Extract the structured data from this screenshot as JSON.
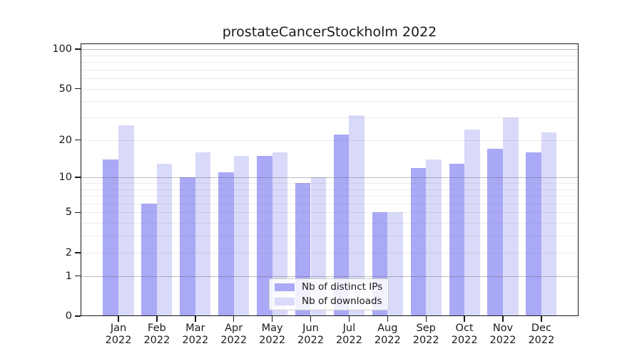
{
  "title": "prostateCancerStockholm 2022",
  "colors": {
    "distinct_ips": "#a9a9f7",
    "downloads": "#d9d9fa",
    "grid_major": "rgba(96,96,96,0.42)",
    "grid_minor": "rgba(128,128,128,0.16)",
    "axis": "#1a1a1a",
    "legend_border": "#cccccc",
    "background": "#ffffff"
  },
  "legend": {
    "items": [
      {
        "label": "Nb of distinct IPs",
        "series_key": "distinct-ips"
      },
      {
        "label": "Nb of downloads",
        "series_key": "downloads"
      }
    ]
  },
  "chart_data": {
    "type": "bar",
    "title": "prostateCancerStockholm 2022",
    "categories": [
      "Jan 2022",
      "Feb 2022",
      "Mar 2022",
      "Apr 2022",
      "May 2022",
      "Jun 2022",
      "Jul 2022",
      "Aug 2022",
      "Sep 2022",
      "Oct 2022",
      "Nov 2022",
      "Dec 2022"
    ],
    "series": [
      {
        "key": "distinct-ips",
        "name": "Nb of distinct IPs",
        "color": "#a9a9f7",
        "values": [
          14,
          6,
          10,
          11,
          15,
          9,
          22,
          5,
          12,
          13,
          17,
          16
        ]
      },
      {
        "key": "downloads",
        "name": "Nb of downloads",
        "color": "#d9d9fa",
        "values": [
          26,
          13,
          16,
          15,
          16,
          10,
          31,
          5,
          14,
          24,
          30,
          23
        ]
      }
    ],
    "xlabel": "",
    "ylabel": "",
    "yscale": "log1p",
    "ylim": [
      0,
      110
    ],
    "yticks": [
      0,
      1,
      2,
      5,
      10,
      20,
      50,
      100
    ],
    "grid": "both",
    "grid_major_values": [
      1,
      10,
      100
    ],
    "grid_minor_values": [
      2,
      3,
      4,
      5,
      6,
      7,
      8,
      9,
      20,
      30,
      40,
      50,
      60,
      70,
      80,
      90
    ],
    "legend_position": "lower center"
  }
}
